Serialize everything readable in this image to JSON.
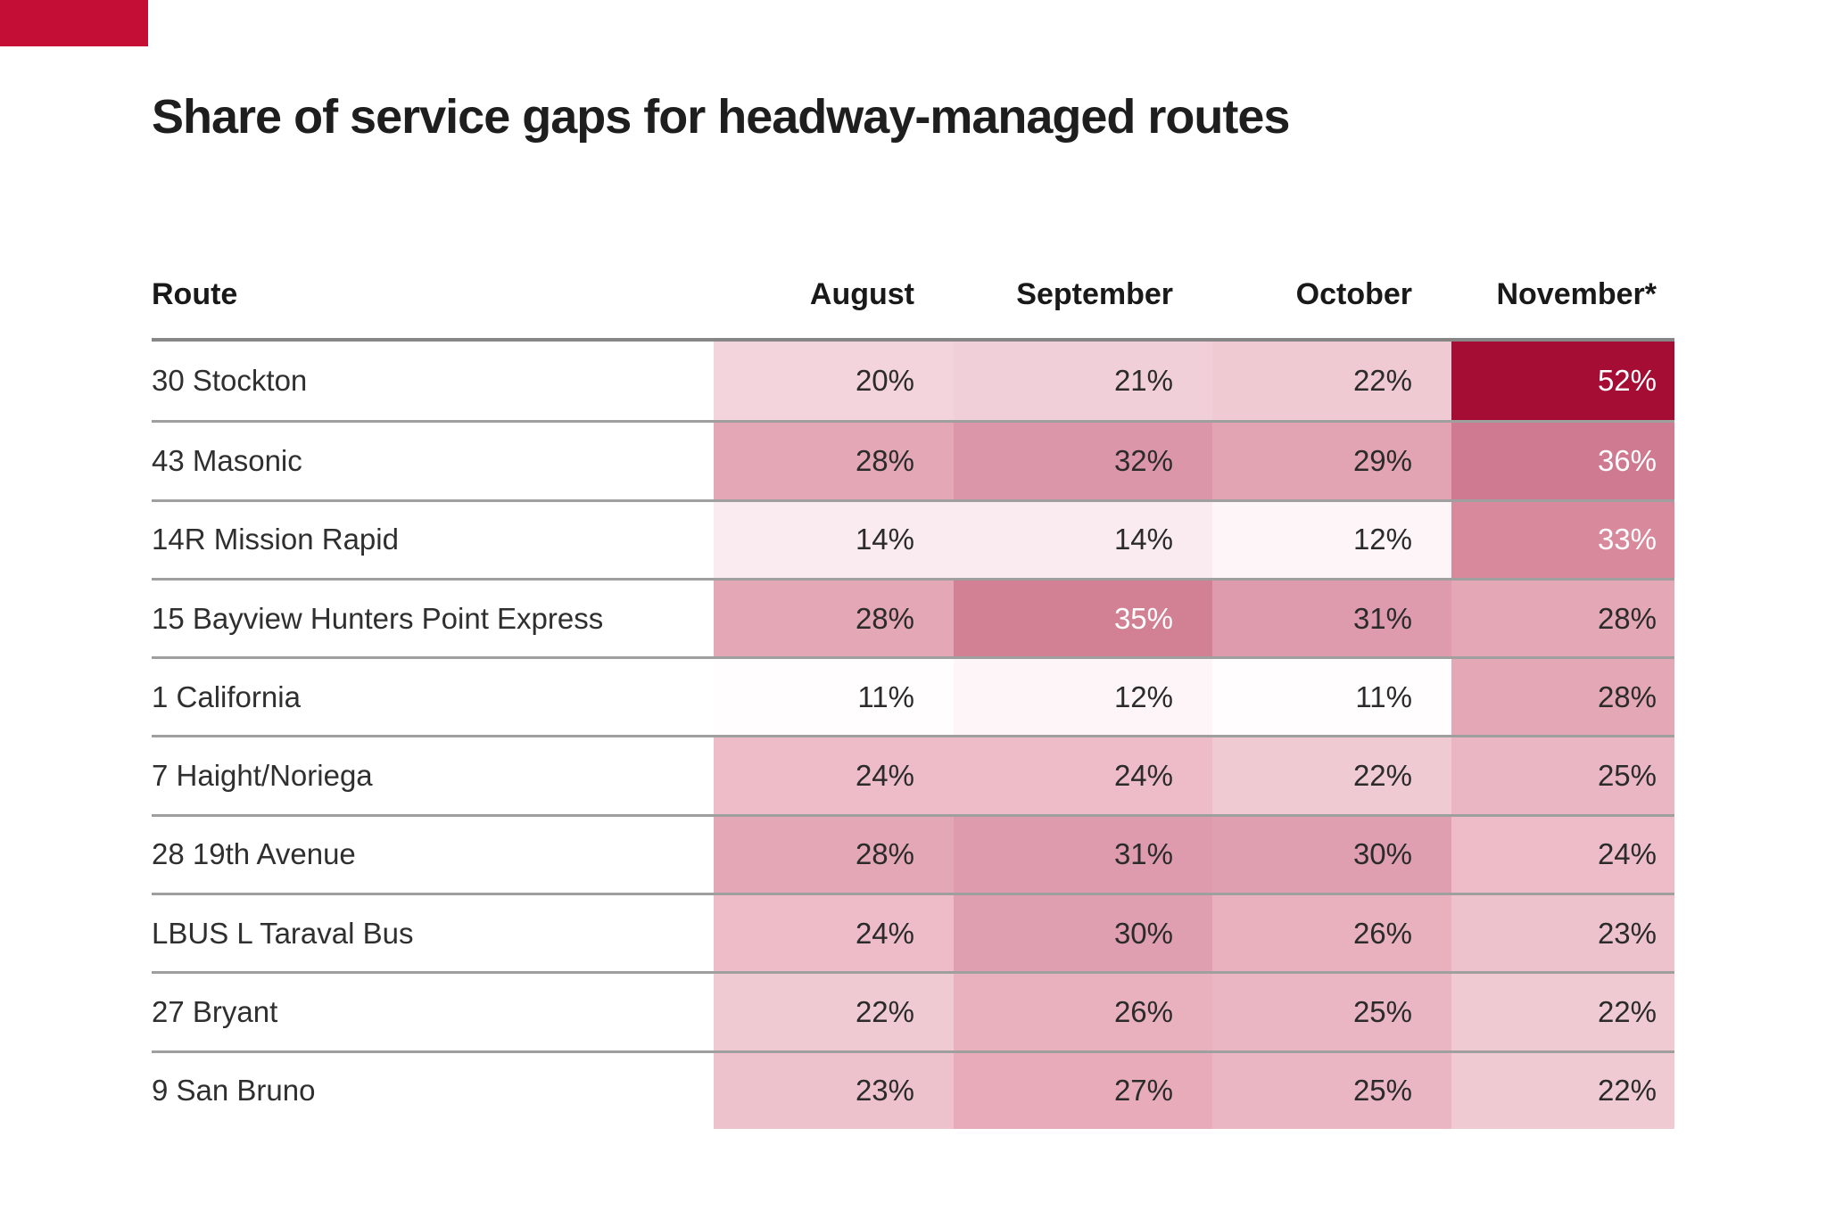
{
  "title": "Share of service gaps for headway-managed routes",
  "brand_mark": {
    "color": "#c50e36"
  },
  "style": {
    "separator": "#9f9f9f",
    "header_rule": "#868686",
    "text_dark": "#2b2b2b",
    "text_light": "#ffffff",
    "max_cell_color": "#a60d35"
  },
  "columns": {
    "route": "Route",
    "months": [
      "August",
      "September",
      "October",
      "November*"
    ]
  },
  "rows": [
    {
      "route": "30 Stockton",
      "cells": [
        {
          "v": "20%",
          "bg": "#f3d3dc",
          "fg": "#2b2b2b"
        },
        {
          "v": "21%",
          "bg": "#f1cfd8",
          "fg": "#2b2b2b"
        },
        {
          "v": "22%",
          "bg": "#f0cad3",
          "fg": "#2b2b2b"
        },
        {
          "v": "52%",
          "bg": "#a60d35",
          "fg": "#ffffff"
        }
      ]
    },
    {
      "route": "43 Masonic",
      "cells": [
        {
          "v": "28%",
          "bg": "#e4a7b5",
          "fg": "#2b2b2b"
        },
        {
          "v": "32%",
          "bg": "#dc96a9",
          "fg": "#2b2b2b"
        },
        {
          "v": "29%",
          "bg": "#e2a3b2",
          "fg": "#2b2b2b"
        },
        {
          "v": "36%",
          "bg": "#cf7a90",
          "fg": "#ffffff"
        }
      ]
    },
    {
      "route": "14R Mission Rapid",
      "cells": [
        {
          "v": "14%",
          "bg": "#f9ebef",
          "fg": "#2b2b2b"
        },
        {
          "v": "14%",
          "bg": "#f9ebef",
          "fg": "#2b2b2b"
        },
        {
          "v": "12%",
          "bg": "#fdf5f7",
          "fg": "#2b2b2b"
        },
        {
          "v": "33%",
          "bg": "#d8899c",
          "fg": "#ffffff"
        }
      ]
    },
    {
      "route": "15 Bayview Hunters Point Express",
      "cells": [
        {
          "v": "28%",
          "bg": "#e4a7b5",
          "fg": "#2b2b2b"
        },
        {
          "v": "35%",
          "bg": "#d28093",
          "fg": "#ffffff"
        },
        {
          "v": "31%",
          "bg": "#de9bad",
          "fg": "#2b2b2b"
        },
        {
          "v": "28%",
          "bg": "#e4a7b5",
          "fg": "#2b2b2b"
        }
      ]
    },
    {
      "route": "1 California",
      "cells": [
        {
          "v": "11%",
          "bg": "#fffdfe",
          "fg": "#2b2b2b"
        },
        {
          "v": "12%",
          "bg": "#fdf5f7",
          "fg": "#2b2b2b"
        },
        {
          "v": "11%",
          "bg": "#fffdfe",
          "fg": "#2b2b2b"
        },
        {
          "v": "28%",
          "bg": "#e4a7b5",
          "fg": "#2b2b2b"
        }
      ]
    },
    {
      "route": "7 Haight/Noriega",
      "cells": [
        {
          "v": "24%",
          "bg": "#edbcc8",
          "fg": "#2b2b2b"
        },
        {
          "v": "24%",
          "bg": "#edbcc8",
          "fg": "#2b2b2b"
        },
        {
          "v": "22%",
          "bg": "#f0cad3",
          "fg": "#2b2b2b"
        },
        {
          "v": "25%",
          "bg": "#ebb6c3",
          "fg": "#2b2b2b"
        }
      ]
    },
    {
      "route": "28 19th Avenue",
      "cells": [
        {
          "v": "28%",
          "bg": "#e4a7b5",
          "fg": "#2b2b2b"
        },
        {
          "v": "31%",
          "bg": "#de9bad",
          "fg": "#2b2b2b"
        },
        {
          "v": "30%",
          "bg": "#e09fb0",
          "fg": "#2b2b2b"
        },
        {
          "v": "24%",
          "bg": "#edbcc8",
          "fg": "#2b2b2b"
        }
      ]
    },
    {
      "route": "LBUS L Taraval Bus",
      "cells": [
        {
          "v": "24%",
          "bg": "#edbcc8",
          "fg": "#2b2b2b"
        },
        {
          "v": "30%",
          "bg": "#e09fb0",
          "fg": "#2b2b2b"
        },
        {
          "v": "26%",
          "bg": "#e9b0be",
          "fg": "#2b2b2b"
        },
        {
          "v": "23%",
          "bg": "#eec2cd",
          "fg": "#2b2b2b"
        }
      ]
    },
    {
      "route": "27 Bryant",
      "cells": [
        {
          "v": "22%",
          "bg": "#f0cad3",
          "fg": "#2b2b2b"
        },
        {
          "v": "26%",
          "bg": "#e9b0be",
          "fg": "#2b2b2b"
        },
        {
          "v": "25%",
          "bg": "#ebb6c3",
          "fg": "#2b2b2b"
        },
        {
          "v": "22%",
          "bg": "#f0cad3",
          "fg": "#2b2b2b"
        }
      ]
    },
    {
      "route": "9 San Bruno",
      "cells": [
        {
          "v": "23%",
          "bg": "#eec2cd",
          "fg": "#2b2b2b"
        },
        {
          "v": "27%",
          "bg": "#e7abba",
          "fg": "#2b2b2b"
        },
        {
          "v": "25%",
          "bg": "#ebb6c3",
          "fg": "#2b2b2b"
        },
        {
          "v": "22%",
          "bg": "#f0cad3",
          "fg": "#2b2b2b"
        }
      ]
    }
  ],
  "chart_data": {
    "type": "heatmap",
    "title": "Share of service gaps for headway-managed routes",
    "unit": "%",
    "categories_x": [
      "August",
      "September",
      "October",
      "November*"
    ],
    "categories_y": [
      "30 Stockton",
      "43 Masonic",
      "14R Mission Rapid",
      "15 Bayview Hunters Point Express",
      "1 California",
      "7 Haight/Noriega",
      "28 19th Avenue",
      "LBUS L Taraval Bus",
      "27 Bryant",
      "9 San Bruno"
    ],
    "values": [
      [
        20,
        21,
        22,
        52
      ],
      [
        28,
        32,
        29,
        36
      ],
      [
        14,
        14,
        12,
        33
      ],
      [
        28,
        35,
        31,
        28
      ],
      [
        11,
        12,
        11,
        28
      ],
      [
        24,
        24,
        22,
        25
      ],
      [
        28,
        31,
        30,
        24
      ],
      [
        24,
        30,
        26,
        23
      ],
      [
        22,
        26,
        25,
        22
      ],
      [
        23,
        27,
        25,
        22
      ]
    ],
    "color_scale": {
      "low": "#ffffff",
      "high": "#a60d35",
      "domain": [
        11,
        52
      ]
    },
    "layout": {
      "grid": "horizontal-separators",
      "legend": "none",
      "values_shown_in_cells": true
    }
  }
}
